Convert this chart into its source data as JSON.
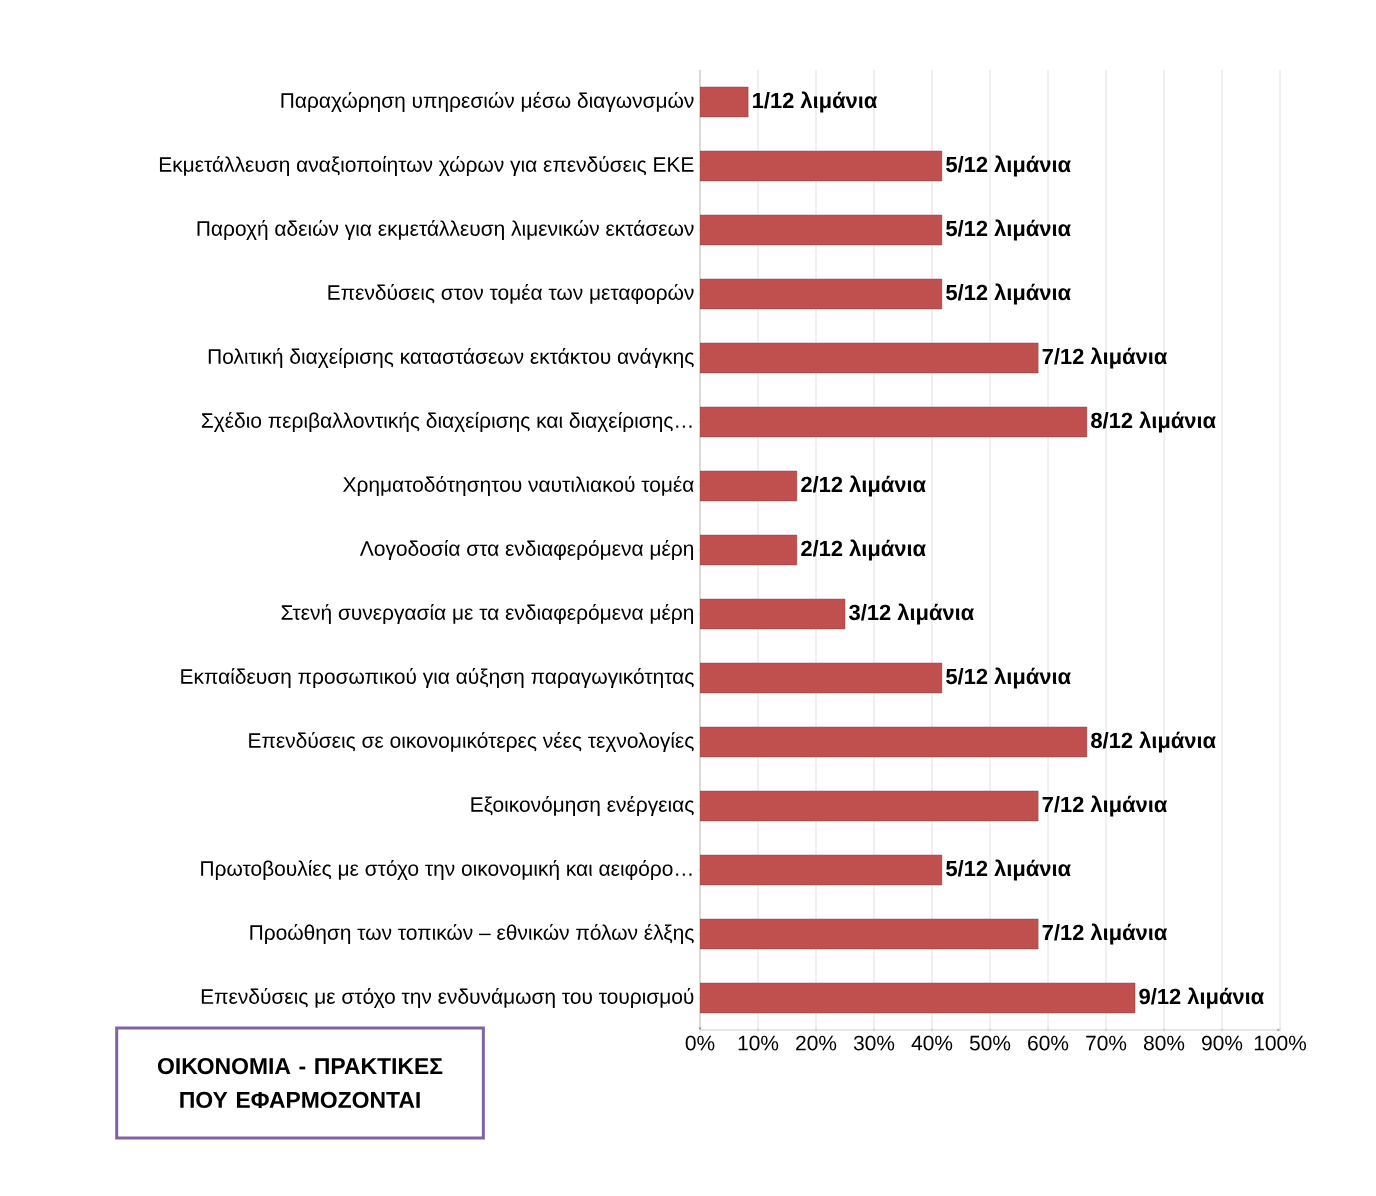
{
  "chart_data": {
    "type": "bar",
    "orientation": "horizontal",
    "title": "ΟΙΚΟΝΟΜΙΑ - ΠΡΑΚΤΙΚΕΣ ΠΟΥ ΕΦΑΡΜΟΖΟΝΤΑΙ",
    "categories": [
      "Παραχώρηση υπηρεσιών μέσω διαγωνσμών",
      "Εκμετάλλευση αναξιοποίητων χώρων για επενδύσεις ΕΚΕ",
      "Παροχή αδειών για εκμετάλλευση λιμενικών εκτάσεων",
      "Επενδύσεις στον τομέα των μεταφορών",
      "Πολιτική διαχείρισης καταστάσεων εκτάκτου ανάγκης",
      "Σχέδιο περιβαλλοντικής διαχείρισης και διαχείρισης…",
      "Χρηματοδότησητου ναυτιλιακού τομέα",
      "Λογοδοσία στα ενδιαφερόμενα μέρη",
      "Στενή συνεργασία με τα ενδιαφερόμενα μέρη",
      "Εκπαίδευση προσωπικού για αύξηση παραγωγικότητας",
      "Επενδύσεις σε οικονομικότερες νέες τεχνολογίες",
      "Εξοικονόμηση ενέργειας",
      "Πρωτοβουλίες με στόχο την οικονομική και αειφόρο…",
      "Προώθηση των τοπικών – εθνικών πόλων έλξης",
      "Επενδύσεις με στόχο την ενδυνάμωση του τουρισμού"
    ],
    "values": [
      8.3,
      41.7,
      41.7,
      41.7,
      58.3,
      66.7,
      16.7,
      16.7,
      25,
      41.7,
      66.7,
      58.3,
      41.7,
      58.3,
      75
    ],
    "value_labels": [
      "1/12 λιμάνια",
      "5/12 λιμάνια",
      "5/12 λιμάνια",
      "5/12 λιμάνια",
      "7/12 λιμάνια",
      "8/12 λιμάνια",
      "2/12 λιμάνια",
      "2/12 λιμάνια",
      "3/12 λιμάνια",
      "5/12 λιμάνια",
      "8/12 λιμάνια",
      "7/12 λιμάνια",
      "5/12 λιμάνια",
      "7/12 λιμάνια",
      "9/12 λιμάνια"
    ],
    "color": "#c0504d",
    "xlim": [
      0,
      100
    ],
    "xticks": [
      {
        "value": 0,
        "label": "0%"
      },
      {
        "value": 10,
        "label": "10%"
      },
      {
        "value": 20,
        "label": "20%"
      },
      {
        "value": 30,
        "label": "30%"
      },
      {
        "value": 40,
        "label": "40%"
      },
      {
        "value": 50,
        "label": "50%"
      },
      {
        "value": 60,
        "label": "60%"
      },
      {
        "value": 70,
        "label": "70%"
      },
      {
        "value": 80,
        "label": "80%"
      },
      {
        "value": 90,
        "label": "90%"
      },
      {
        "value": 100,
        "label": "100%"
      }
    ],
    "grid": "x"
  }
}
